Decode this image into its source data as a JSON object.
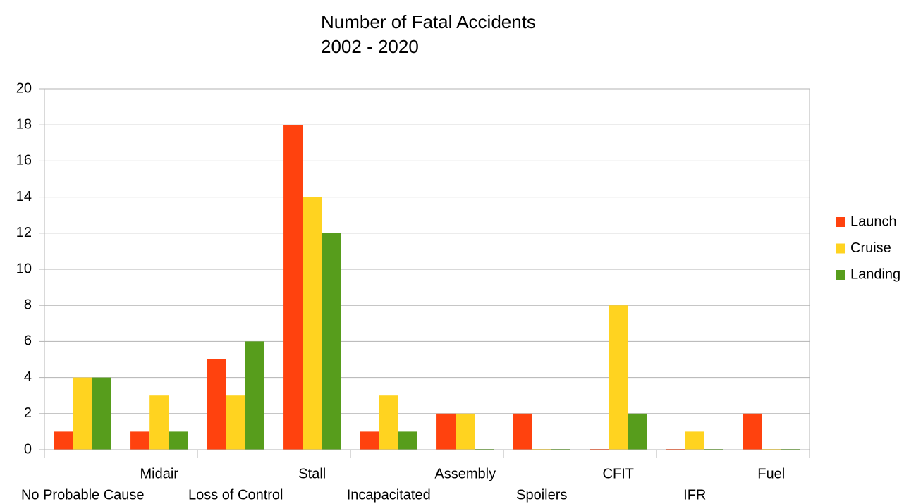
{
  "chart_data": {
    "type": "bar",
    "title": "Number of Fatal Accidents",
    "subtitle": "2002 - 2020",
    "categories": [
      "No Probable Cause",
      "Midair",
      "Loss of Control",
      "Stall",
      "Incapacitated",
      "Assembly",
      "Spoilers",
      "CFIT",
      "IFR",
      "Fuel"
    ],
    "series": [
      {
        "name": "Launch",
        "color": "#ff420e",
        "values": [
          1,
          1,
          5,
          18,
          1,
          2,
          2,
          0,
          0,
          2
        ]
      },
      {
        "name": "Cruise",
        "color": "#ffd320",
        "values": [
          4,
          3,
          3,
          14,
          3,
          2,
          0,
          8,
          1,
          0
        ]
      },
      {
        "name": "Landing",
        "color": "#579d1c",
        "values": [
          4,
          1,
          6,
          12,
          1,
          0,
          0,
          2,
          0,
          0
        ]
      }
    ],
    "ylim": [
      0,
      20
    ],
    "yticks": [
      0,
      2,
      4,
      6,
      8,
      10,
      12,
      14,
      16,
      18,
      20
    ],
    "grid": true,
    "legend": "right"
  }
}
